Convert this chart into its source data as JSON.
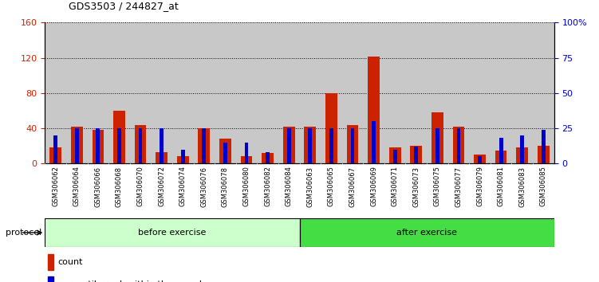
{
  "title": "GDS3503 / 244827_at",
  "categories": [
    "GSM306062",
    "GSM306064",
    "GSM306066",
    "GSM306068",
    "GSM306070",
    "GSM306072",
    "GSM306074",
    "GSM306076",
    "GSM306078",
    "GSM306080",
    "GSM306082",
    "GSM306084",
    "GSM306063",
    "GSM306065",
    "GSM306067",
    "GSM306069",
    "GSM306071",
    "GSM306073",
    "GSM306075",
    "GSM306077",
    "GSM306079",
    "GSM306081",
    "GSM306083",
    "GSM306085"
  ],
  "count_values": [
    18,
    42,
    38,
    60,
    44,
    13,
    8,
    40,
    28,
    8,
    12,
    42,
    42,
    80,
    44,
    121,
    18,
    20,
    58,
    42,
    10,
    15,
    18,
    20
  ],
  "percentile_values": [
    20,
    25,
    25,
    25,
    25,
    25,
    10,
    25,
    15,
    15,
    8,
    25,
    25,
    25,
    25,
    30,
    10,
    12,
    25,
    25,
    5,
    18,
    20,
    24
  ],
  "before_count": 12,
  "after_count": 12,
  "before_label": "before exercise",
  "after_label": "after exercise",
  "protocol_label": "protocol",
  "count_color": "#cc2200",
  "percentile_color": "#0000cc",
  "before_bg": "#ccffcc",
  "after_bg": "#44dd44",
  "bar_bg": "#c8c8c8",
  "left_yticks": [
    0,
    40,
    80,
    120,
    160
  ],
  "right_yticks": [
    0,
    25,
    50,
    75,
    100
  ],
  "right_yticklabels": [
    "0",
    "25",
    "50",
    "75",
    "100%"
  ],
  "ylim_left": [
    0,
    160
  ],
  "ylim_right": [
    0,
    100
  ],
  "percentile_scale": 1.6,
  "red_bar_width": 0.55,
  "blue_bar_width": 0.18
}
